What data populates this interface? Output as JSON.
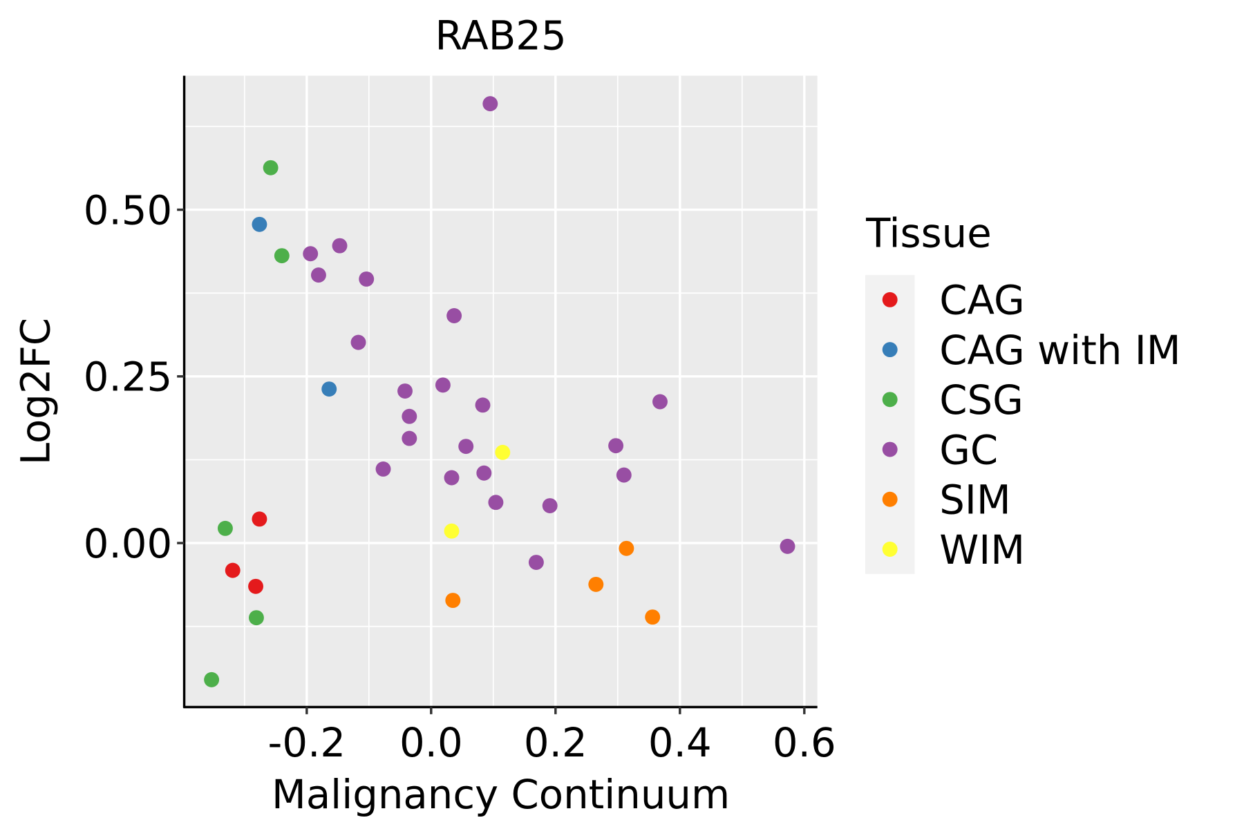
{
  "chart_data": {
    "type": "scatter",
    "title": "RAB25",
    "xlabel": "Malignancy Continuum",
    "ylabel": "Log2FC",
    "xlim": [
      -0.397,
      0.621
    ],
    "ylim": [
      -0.246,
      0.701
    ],
    "x_ticks": [
      -0.2,
      0.0,
      0.2,
      0.4,
      0.6
    ],
    "x_tick_labels": [
      "-0.2",
      "0.0",
      "0.2",
      "0.4",
      "0.6"
    ],
    "y_ticks": [
      0.0,
      0.25,
      0.5
    ],
    "y_tick_labels": [
      "0.00",
      "0.25",
      "0.50"
    ],
    "grid": true,
    "legend": {
      "title": "Tissue",
      "placement": "right",
      "entries": [
        {
          "label": "CAG",
          "color": "#E41A1C"
        },
        {
          "label": "CAG with IM",
          "color": "#377EB8"
        },
        {
          "label": "CSG",
          "color": "#4DAF4A"
        },
        {
          "label": "GC",
          "color": "#984EA3"
        },
        {
          "label": "SIM",
          "color": "#FF7F00"
        },
        {
          "label": "WIM",
          "color": "#FFFF33"
        }
      ]
    },
    "series": [
      {
        "name": "CAG",
        "points": [
          [
            -0.276,
            0.036
          ],
          [
            -0.319,
            -0.041
          ],
          [
            -0.282,
            -0.065
          ]
        ]
      },
      {
        "name": "CAG with IM",
        "points": [
          [
            -0.276,
            0.478
          ],
          [
            -0.164,
            0.231
          ]
        ]
      },
      {
        "name": "CSG",
        "points": [
          [
            -0.258,
            0.563
          ],
          [
            -0.24,
            0.431
          ],
          [
            -0.331,
            0.022
          ],
          [
            -0.281,
            -0.112
          ],
          [
            -0.353,
            -0.205
          ]
        ]
      },
      {
        "name": "GC",
        "points": [
          [
            0.095,
            0.659
          ],
          [
            -0.194,
            0.434
          ],
          [
            -0.147,
            0.446
          ],
          [
            -0.181,
            0.402
          ],
          [
            -0.104,
            0.396
          ],
          [
            0.037,
            0.341
          ],
          [
            -0.117,
            0.301
          ],
          [
            -0.042,
            0.228
          ],
          [
            0.019,
            0.237
          ],
          [
            0.083,
            0.207
          ],
          [
            -0.035,
            0.19
          ],
          [
            -0.035,
            0.157
          ],
          [
            0.056,
            0.145
          ],
          [
            -0.077,
            0.111
          ],
          [
            0.033,
            0.098
          ],
          [
            0.085,
            0.105
          ],
          [
            0.104,
            0.061
          ],
          [
            0.191,
            0.056
          ],
          [
            0.169,
            -0.029
          ],
          [
            0.297,
            0.146
          ],
          [
            0.31,
            0.102
          ],
          [
            0.368,
            0.212
          ],
          [
            0.573,
            -0.005
          ]
        ]
      },
      {
        "name": "SIM",
        "points": [
          [
            0.314,
            -0.008
          ],
          [
            0.265,
            -0.062
          ],
          [
            0.035,
            -0.086
          ],
          [
            0.356,
            -0.111
          ]
        ]
      },
      {
        "name": "WIM",
        "points": [
          [
            0.115,
            0.136
          ],
          [
            0.033,
            0.018
          ]
        ]
      }
    ]
  }
}
